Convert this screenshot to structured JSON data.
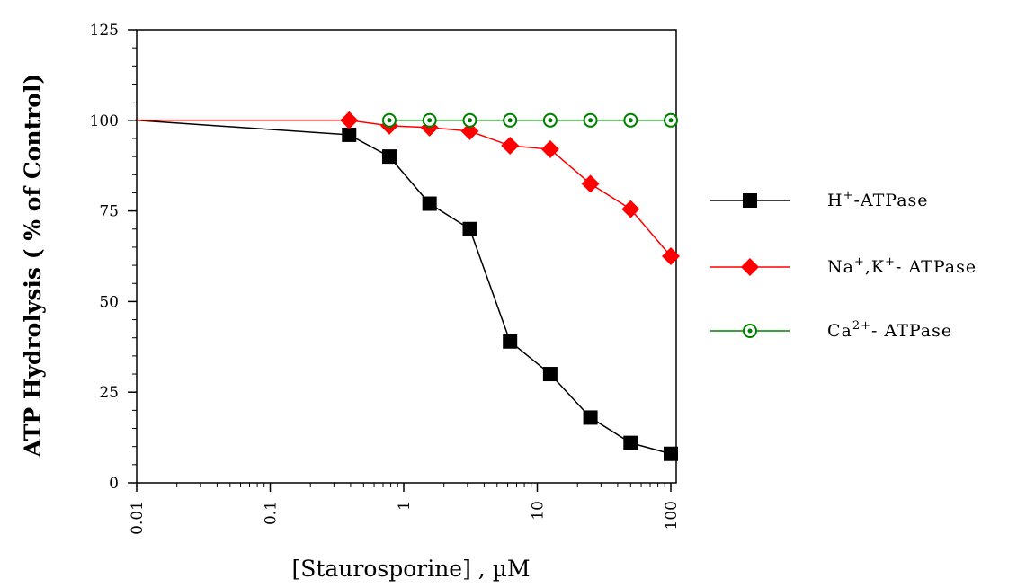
{
  "chart_data": {
    "type": "line",
    "title": "",
    "xlabel": "[Staurosporine] , µM",
    "ylabel": "ATP Hydrolysis ( % of Control)",
    "x_scale": "log",
    "xlim": [
      0.01,
      100
    ],
    "ylim": [
      0,
      125
    ],
    "x_tick_labels": [
      "0.01",
      "0.1",
      "1",
      "10",
      "100"
    ],
    "y_tick_labels": [
      "0",
      "25",
      "50",
      "75",
      "100",
      "125"
    ],
    "legend_position": "right",
    "series": [
      {
        "name_base": "H",
        "name_sup": "+",
        "name_rest": "-ATPase",
        "color": "#000000",
        "marker": "square",
        "x": [
          0.01,
          0.39,
          0.78,
          1.56,
          3.125,
          6.25,
          12.5,
          25,
          50,
          100
        ],
        "y": [
          100,
          96,
          90,
          77,
          70,
          39,
          30,
          18,
          11,
          8
        ],
        "marker_from_index": 1
      },
      {
        "name_base": "Na",
        "name_sup": "+",
        "name_mid": ",K",
        "name_sup2": "+",
        "name_rest": "- ATPase",
        "color": "#ff0000",
        "marker": "diamond",
        "x": [
          0.01,
          0.39,
          0.78,
          1.56,
          3.125,
          6.25,
          12.5,
          25,
          50,
          100
        ],
        "y": [
          100,
          100,
          98.5,
          98,
          97,
          93,
          92,
          82.5,
          75.5,
          62.5
        ],
        "marker_from_index": 1
      },
      {
        "name_base": "Ca",
        "name_sup": "2+",
        "name_rest": "- ATPase",
        "color": "#008000",
        "marker": "circle",
        "x": [
          0.78,
          1.56,
          3.125,
          6.25,
          12.5,
          25,
          50,
          100
        ],
        "y": [
          100,
          100,
          100,
          100,
          100,
          100,
          100,
          100
        ],
        "marker_from_index": 0
      }
    ]
  }
}
